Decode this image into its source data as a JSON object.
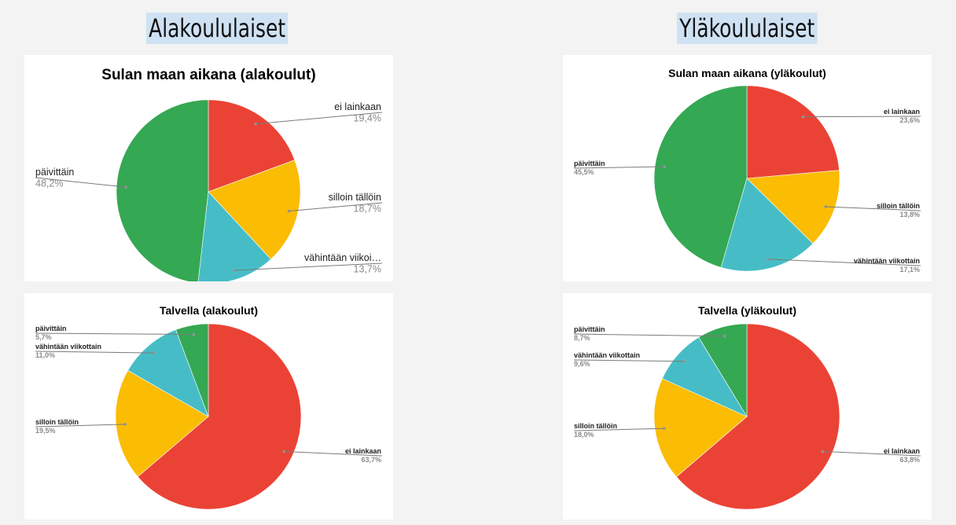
{
  "headings": {
    "left": "Alakoululaiset",
    "right": "Yläkoululaiset"
  },
  "colors": {
    "ei lainkaan": "#ea4335",
    "silloin tällöin": "#fbbc04",
    "vähintään viikottain": "#46bdc6",
    "päivittäin": "#34a853"
  },
  "chart_data": [
    {
      "type": "pie",
      "title": "Sulan maan aikana (alakoulut)",
      "slices": [
        {
          "label": "ei lainkaan",
          "display_label": "ei lainkaan",
          "value": 19.4,
          "value_label": "19,4%"
        },
        {
          "label": "silloin tällöin",
          "display_label": "silloin tällöin",
          "value": 18.7,
          "value_label": "18,7%"
        },
        {
          "label": "vähintään viikottain",
          "display_label": "vähintään viikoi…",
          "value": 13.7,
          "value_label": "13,7%"
        },
        {
          "label": "päivittäin",
          "display_label": "päivittäin",
          "value": 48.2,
          "value_label": "48,2%"
        }
      ]
    },
    {
      "type": "pie",
      "title": "Sulan maan aikana (yläkoulut)",
      "slices": [
        {
          "label": "ei lainkaan",
          "display_label": "ei lainkaan",
          "value": 23.6,
          "value_label": "23,6%"
        },
        {
          "label": "silloin tällöin",
          "display_label": "silloin tällöin",
          "value": 13.8,
          "value_label": "13,8%"
        },
        {
          "label": "vähintään viikottain",
          "display_label": "vähintään viikottain",
          "value": 17.1,
          "value_label": "17,1%"
        },
        {
          "label": "päivittäin",
          "display_label": "päivittäin",
          "value": 45.5,
          "value_label": "45,5%"
        }
      ]
    },
    {
      "type": "pie",
      "title": "Talvella (alakoulut)",
      "slices": [
        {
          "label": "ei lainkaan",
          "display_label": "ei lainkaan",
          "value": 63.7,
          "value_label": "63,7%"
        },
        {
          "label": "silloin tällöin",
          "display_label": "silloin tällöin",
          "value": 19.5,
          "value_label": "19,5%"
        },
        {
          "label": "vähintään viikottain",
          "display_label": "vähintään viikottain",
          "value": 11.0,
          "value_label": "11,0%"
        },
        {
          "label": "päivittäin",
          "display_label": "päivittäin",
          "value": 5.7,
          "value_label": "5,7%"
        }
      ]
    },
    {
      "type": "pie",
      "title": "Talvella (yläkoulut)",
      "slices": [
        {
          "label": "ei lainkaan",
          "display_label": "ei lainkaan",
          "value": 63.8,
          "value_label": "63,8%"
        },
        {
          "label": "silloin tällöin",
          "display_label": "silloin tällöin",
          "value": 18.0,
          "value_label": "18,0%"
        },
        {
          "label": "vähintään viikottain",
          "display_label": "vähintään viikottain",
          "value": 9.6,
          "value_label": "9,6%"
        },
        {
          "label": "päivittäin",
          "display_label": "päivittäin",
          "value": 8.7,
          "value_label": "8,7%"
        }
      ]
    }
  ]
}
